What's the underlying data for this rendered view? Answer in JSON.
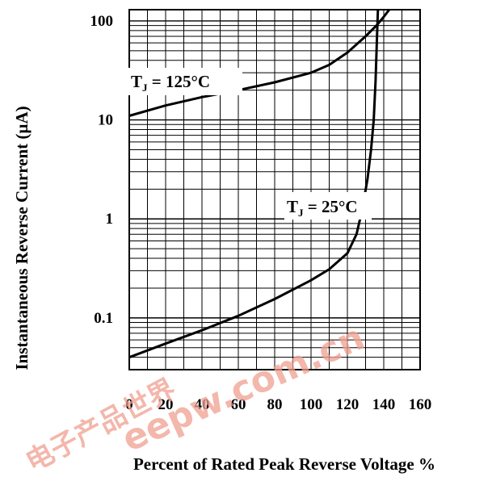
{
  "chart_data": {
    "type": "line",
    "title": "",
    "xlabel": "Percent of Rated Peak Reverse Voltage %",
    "ylabel": "Instantaneous Reverse Current (µA)",
    "xlim": [
      0,
      160
    ],
    "ylim": [
      0.03,
      130
    ],
    "yscale": "log",
    "x_ticks": [
      "0",
      "20",
      "40",
      "60",
      "80",
      "100",
      "120",
      "140",
      "160"
    ],
    "y_ticks": [
      "0.1",
      "1",
      "10",
      "100"
    ],
    "grid": true,
    "legend": "none",
    "series": [
      {
        "name": "TJ = 125°C",
        "points": [
          [
            0,
            11
          ],
          [
            20,
            14
          ],
          [
            40,
            17
          ],
          [
            60,
            20
          ],
          [
            80,
            24
          ],
          [
            100,
            30
          ],
          [
            110,
            36
          ],
          [
            120,
            48
          ],
          [
            130,
            70
          ],
          [
            136,
            90
          ],
          [
            140,
            110
          ],
          [
            143,
            130
          ]
        ]
      },
      {
        "name": "TJ = 25°C",
        "points": [
          [
            0,
            0.04
          ],
          [
            20,
            0.055
          ],
          [
            40,
            0.075
          ],
          [
            60,
            0.105
          ],
          [
            80,
            0.155
          ],
          [
            100,
            0.24
          ],
          [
            110,
            0.31
          ],
          [
            120,
            0.45
          ],
          [
            125,
            0.7
          ],
          [
            128,
            1.2
          ],
          [
            131,
            2.5
          ],
          [
            133,
            5
          ],
          [
            134.5,
            10
          ],
          [
            135.5,
            25
          ],
          [
            136.2,
            60
          ],
          [
            136.8,
            130
          ]
        ]
      }
    ],
    "annotations": [
      {
        "label": "T",
        "subscript": "J",
        "text": "= 125°C"
      },
      {
        "label": "T",
        "subscript": "J",
        "text": "= 25°C"
      }
    ]
  },
  "watermark": {
    "chinese": "电子产品世界",
    "latin": "eepw.com.cn",
    "color": "#f0a090"
  }
}
